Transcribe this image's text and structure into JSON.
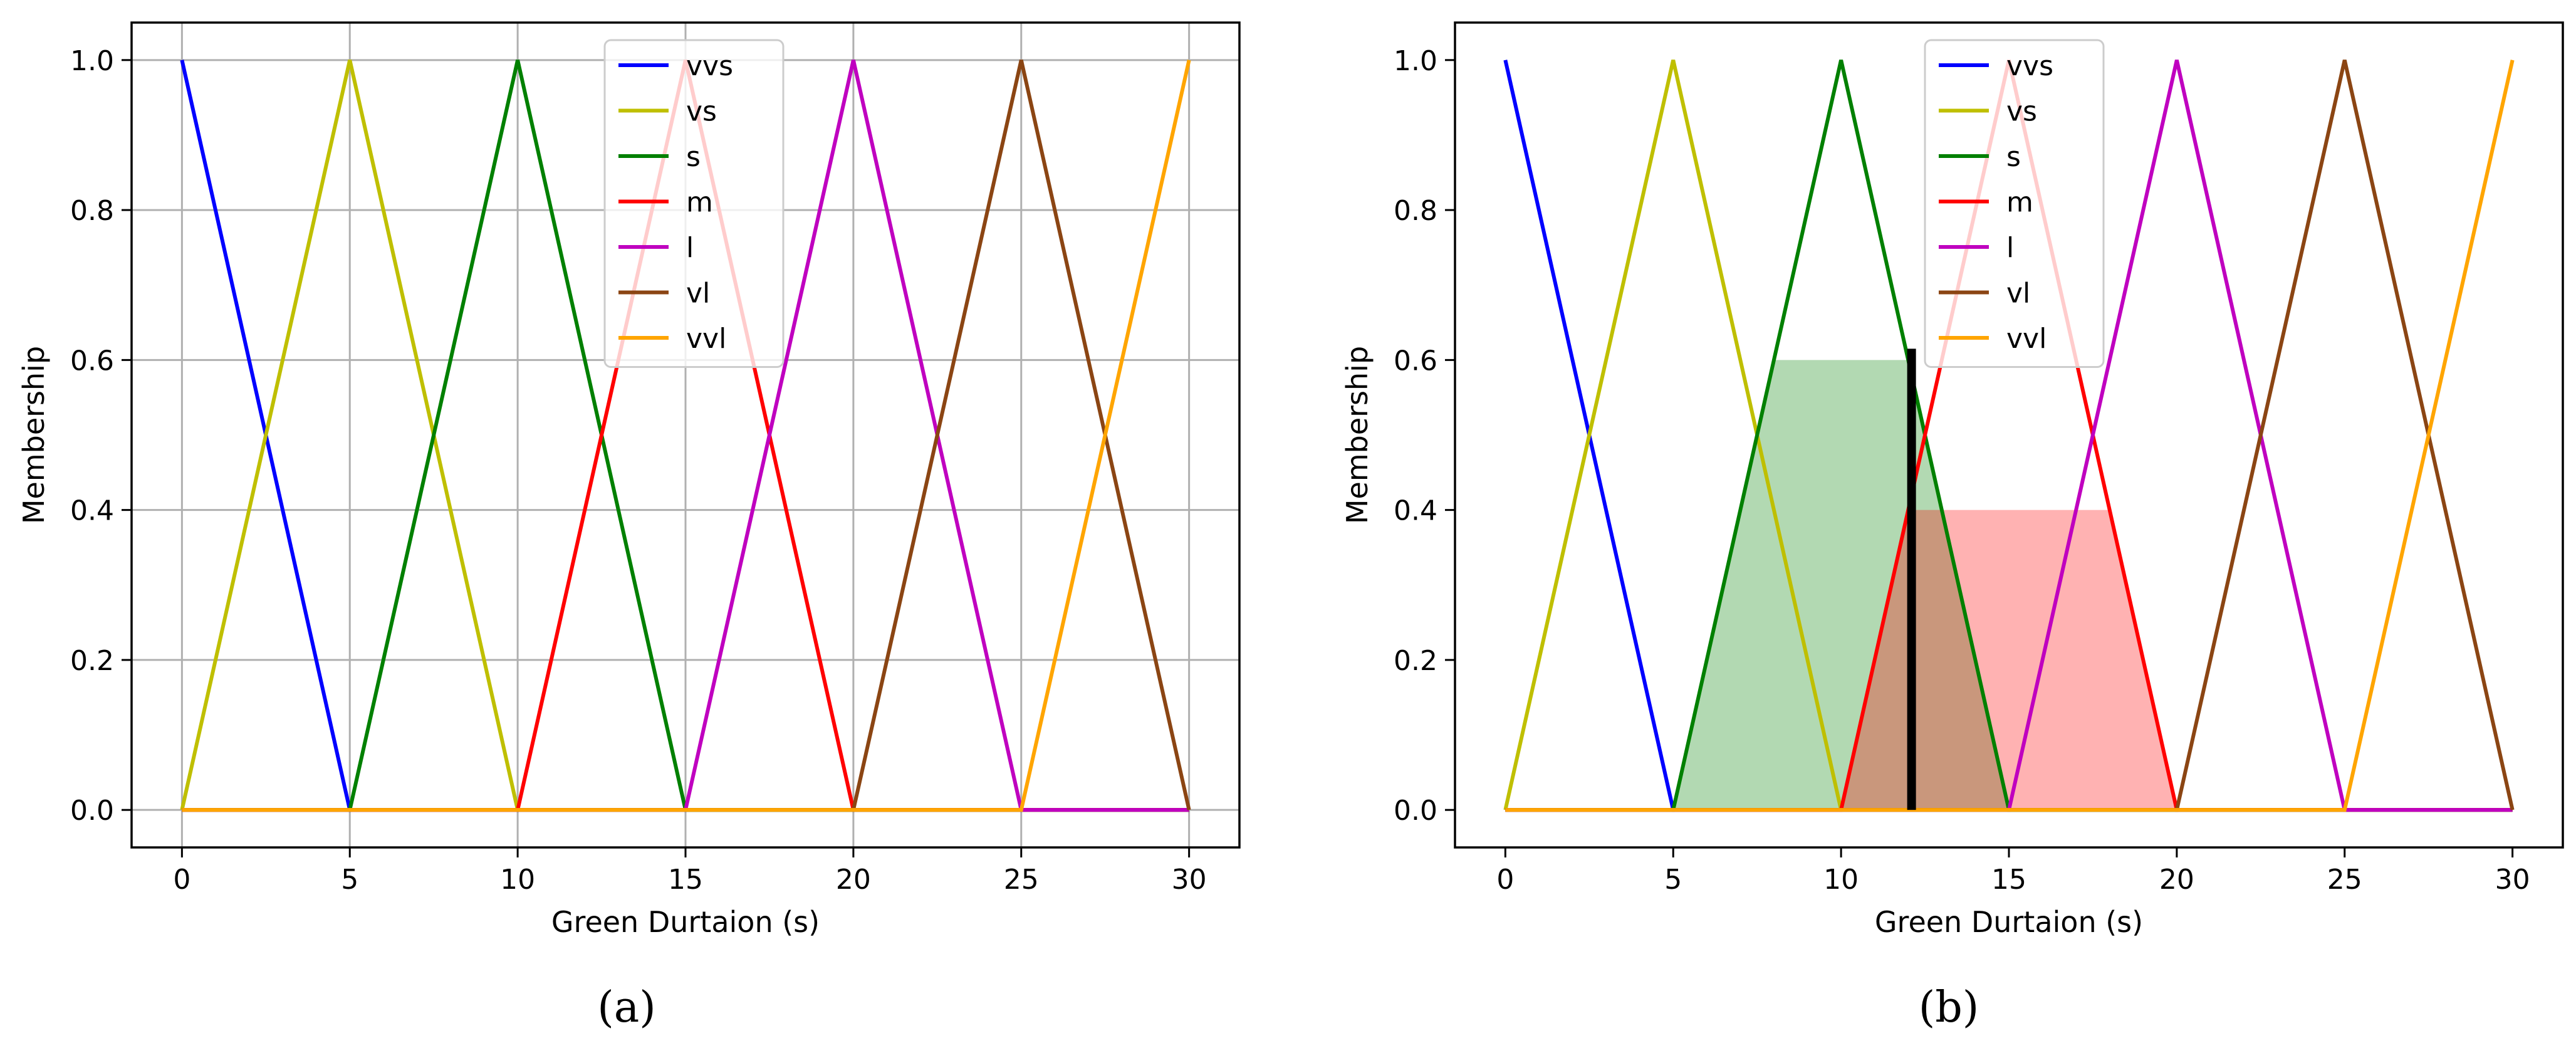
{
  "chart_data": [
    {
      "type": "line",
      "panel_label": "(a)",
      "xlabel": "Green Durtaion (s)",
      "ylabel": "Membership",
      "xlim": [
        -1.5,
        31.5
      ],
      "ylim": [
        -0.05,
        1.05
      ],
      "xticks": [
        0,
        5,
        10,
        15,
        20,
        25,
        30
      ],
      "yticks": [
        0.0,
        0.2,
        0.4,
        0.6,
        0.8,
        1.0
      ],
      "tick_labels_x": [
        "0",
        "5",
        "10",
        "15",
        "20",
        "25",
        "30"
      ],
      "tick_labels_y": [
        "0.0",
        "0.2",
        "0.4",
        "0.6",
        "0.8",
        "1.0"
      ],
      "grid": true,
      "legend_position": "top-center",
      "series": [
        {
          "name": "vvs",
          "color": "#0000ff",
          "x": [
            0,
            5,
            30
          ],
          "y": [
            1,
            0,
            0
          ]
        },
        {
          "name": "vs",
          "color": "#bfbf00",
          "x": [
            0,
            5,
            10,
            30
          ],
          "y": [
            0,
            1,
            0,
            0
          ]
        },
        {
          "name": "s",
          "color": "#008000",
          "x": [
            0,
            5,
            10,
            15,
            30
          ],
          "y": [
            0,
            0,
            1,
            0,
            0
          ]
        },
        {
          "name": "m",
          "color": "#ff0000",
          "x": [
            0,
            10,
            15,
            20,
            30
          ],
          "y": [
            0,
            0,
            1,
            0,
            0
          ]
        },
        {
          "name": "l",
          "color": "#bf00bf",
          "x": [
            0,
            15,
            20,
            25,
            30
          ],
          "y": [
            0,
            0,
            1,
            0,
            0
          ]
        },
        {
          "name": "vl",
          "color": "#8b4513",
          "x": [
            0,
            20,
            25,
            30
          ],
          "y": [
            0,
            0,
            1,
            0
          ]
        },
        {
          "name": "vvl",
          "color": "#ffa500",
          "x": [
            0,
            25,
            30
          ],
          "y": [
            0,
            0,
            1
          ]
        }
      ]
    },
    {
      "type": "line",
      "panel_label": "(b)",
      "xlabel": "Green Durtaion (s)",
      "ylabel": "Membership",
      "xlim": [
        -1.5,
        31.5
      ],
      "ylim": [
        -0.05,
        1.05
      ],
      "xticks": [
        0,
        5,
        10,
        15,
        20,
        25,
        30
      ],
      "yticks": [
        0.0,
        0.2,
        0.4,
        0.6,
        0.8,
        1.0
      ],
      "tick_labels_x": [
        "0",
        "5",
        "10",
        "15",
        "20",
        "25",
        "30"
      ],
      "tick_labels_y": [
        "0.0",
        "0.2",
        "0.4",
        "0.6",
        "0.8",
        "1.0"
      ],
      "grid": false,
      "legend_position": "top-center",
      "series": [
        {
          "name": "vvs",
          "color": "#0000ff",
          "x": [
            0,
            5,
            30
          ],
          "y": [
            1,
            0,
            0
          ]
        },
        {
          "name": "vs",
          "color": "#bfbf00",
          "x": [
            0,
            5,
            10,
            30
          ],
          "y": [
            0,
            1,
            0,
            0
          ]
        },
        {
          "name": "s",
          "color": "#008000",
          "x": [
            0,
            5,
            10,
            15,
            30
          ],
          "y": [
            0,
            0,
            1,
            0,
            0
          ]
        },
        {
          "name": "m",
          "color": "#ff0000",
          "x": [
            0,
            10,
            15,
            20,
            30
          ],
          "y": [
            0,
            0,
            1,
            0,
            0
          ]
        },
        {
          "name": "l",
          "color": "#bf00bf",
          "x": [
            0,
            15,
            20,
            25,
            30
          ],
          "y": [
            0,
            0,
            1,
            0,
            0
          ]
        },
        {
          "name": "vl",
          "color": "#8b4513",
          "x": [
            0,
            20,
            25,
            30
          ],
          "y": [
            0,
            0,
            1,
            0
          ]
        },
        {
          "name": "vvl",
          "color": "#ffa500",
          "x": [
            0,
            25,
            30
          ],
          "y": [
            0,
            0,
            1
          ]
        }
      ],
      "fills": [
        {
          "color": "#008000",
          "opacity": 0.3,
          "x": [
            5,
            8,
            12,
            15
          ],
          "y": [
            0,
            0.6,
            0.6,
            0
          ]
        },
        {
          "color": "#ff0000",
          "opacity": 0.3,
          "x": [
            10,
            12,
            18,
            20
          ],
          "y": [
            0,
            0.4,
            0.4,
            0
          ]
        }
      ],
      "vline": {
        "x": 12.1,
        "y0": 0,
        "y1": 0.615,
        "color": "#000000"
      }
    }
  ]
}
